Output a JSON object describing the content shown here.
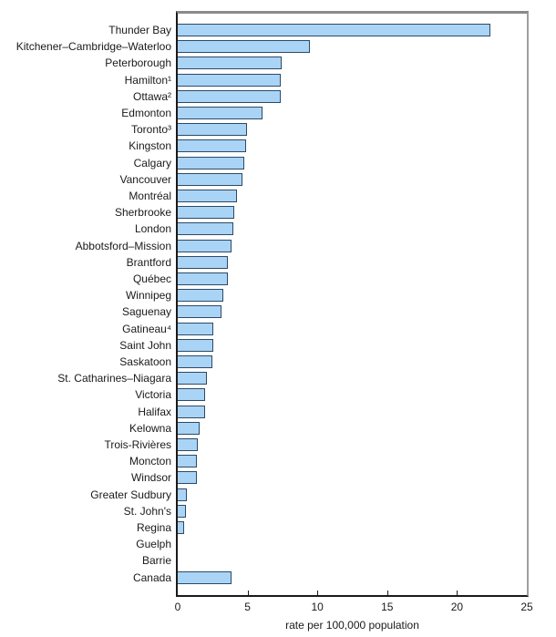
{
  "chart_data": {
    "type": "bar",
    "orientation": "horizontal",
    "title": "",
    "xlabel": "rate per 100,000 population",
    "ylabel": "",
    "xlim": [
      0,
      25
    ],
    "x_ticks": [
      0,
      5,
      10,
      15,
      20,
      25
    ],
    "grid": false,
    "legend": false,
    "bar_fill_color": "#aad4f6",
    "bar_border_color": "#2c4a66",
    "frame_color": "#8a8a8a",
    "axis_color": "#1a1a1a",
    "categories": [
      "Thunder Bay",
      "Kitchener–Cambridge–Waterloo",
      "Peterborough",
      "Hamilton¹",
      "Ottawa²",
      "Edmonton",
      "Toronto³",
      "Kingston",
      "Calgary",
      "Vancouver",
      "Montréal",
      "Sherbrooke",
      "London",
      "Abbotsford–Mission",
      "Brantford",
      "Québec",
      "Winnipeg",
      "Saguenay",
      "Gatineau⁴",
      "Saint John",
      "Saskatoon",
      "St. Catharines–Niagara",
      "Victoria",
      "Halifax",
      "Kelowna",
      "Trois-Rivières",
      "Moncton",
      "Windsor",
      "Greater Sudbury",
      "St. John's",
      "Regina",
      "Guelph",
      "Barrie",
      "Canada"
    ],
    "values": [
      22.3,
      9.4,
      7.4,
      7.3,
      7.3,
      6.0,
      4.9,
      4.8,
      4.7,
      4.6,
      4.2,
      4.0,
      3.9,
      3.8,
      3.5,
      3.5,
      3.2,
      3.1,
      2.5,
      2.5,
      2.4,
      2.0,
      1.9,
      1.9,
      1.5,
      1.4,
      1.3,
      1.3,
      0.6,
      0.5,
      0.4,
      0,
      0,
      3.8
    ]
  }
}
